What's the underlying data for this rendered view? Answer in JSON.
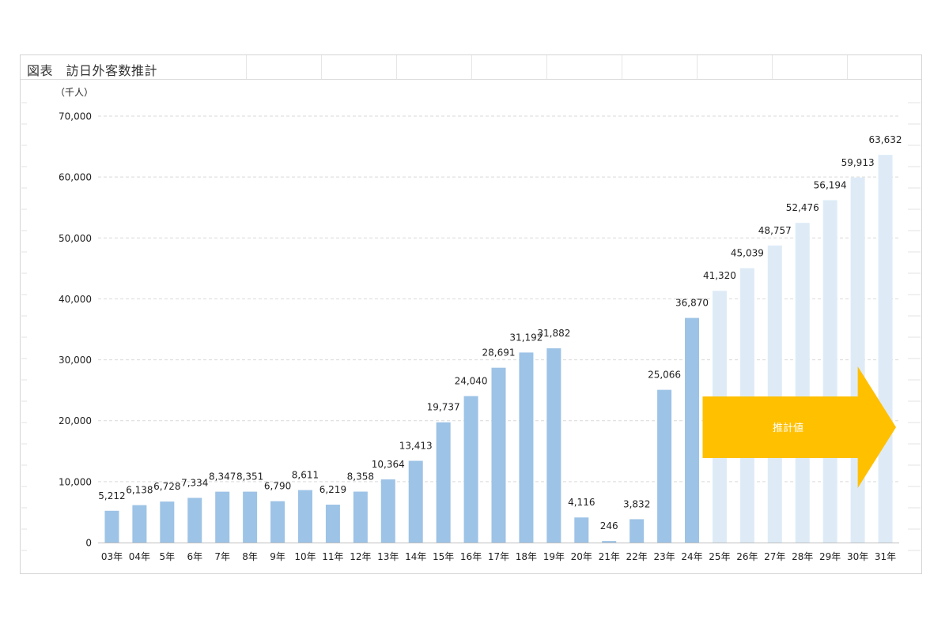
{
  "caption": "図表　訪日外客数推計",
  "chart_data": {
    "type": "bar",
    "title": "",
    "unit_label": "（千人）",
    "categories": [
      "03年",
      "04年",
      "5年",
      "6年",
      "7年",
      "8年",
      "9年",
      "10年",
      "11年",
      "12年",
      "13年",
      "14年",
      "15年",
      "16年",
      "17年",
      "18年",
      "19年",
      "20年",
      "21年",
      "22年",
      "23年",
      "24年",
      "25年",
      "26年",
      "27年",
      "28年",
      "29年",
      "30年",
      "31年"
    ],
    "series": [
      {
        "values": [
          5212,
          6138,
          6728,
          7334,
          8347,
          8351,
          6790,
          8611,
          6219,
          8358,
          10364,
          13413,
          19737,
          24040,
          28691,
          31192,
          31882,
          4116,
          246,
          3832,
          25066,
          36870,
          41320,
          45039,
          48757,
          52476,
          56194,
          59913,
          63632
        ],
        "data_labels": [
          "5,212",
          "6,138",
          "6,728",
          "7,334",
          "8,347",
          "8,351",
          "6,790",
          "8,611",
          "6,219",
          "8,358",
          "10,364",
          "13,413",
          "19,737",
          "24,040",
          "28,691",
          "31,192",
          "31,882",
          "4,116",
          "246",
          "3,832",
          "25,066",
          "36,870",
          "41,320",
          "45,039",
          "48,757",
          "52,476",
          "56,194",
          "59,913",
          "63,632"
        ]
      }
    ],
    "estimate_start_index": 22,
    "ylim": [
      0,
      70000
    ],
    "yticks": [
      0,
      10000,
      20000,
      30000,
      40000,
      50000,
      60000,
      70000
    ],
    "ytick_labels": [
      "0",
      "10,000",
      "20,000",
      "30,000",
      "40,000",
      "50,000",
      "60,000",
      "70,000"
    ],
    "grid": true,
    "legend": "none",
    "annotation": {
      "text": "推計値",
      "shape": "right-arrow"
    },
    "colors": {
      "actual": "#9dc3e6",
      "estimate": "#deebf7",
      "arrow": "#ffc000",
      "grid": "#d9d9d9"
    }
  }
}
